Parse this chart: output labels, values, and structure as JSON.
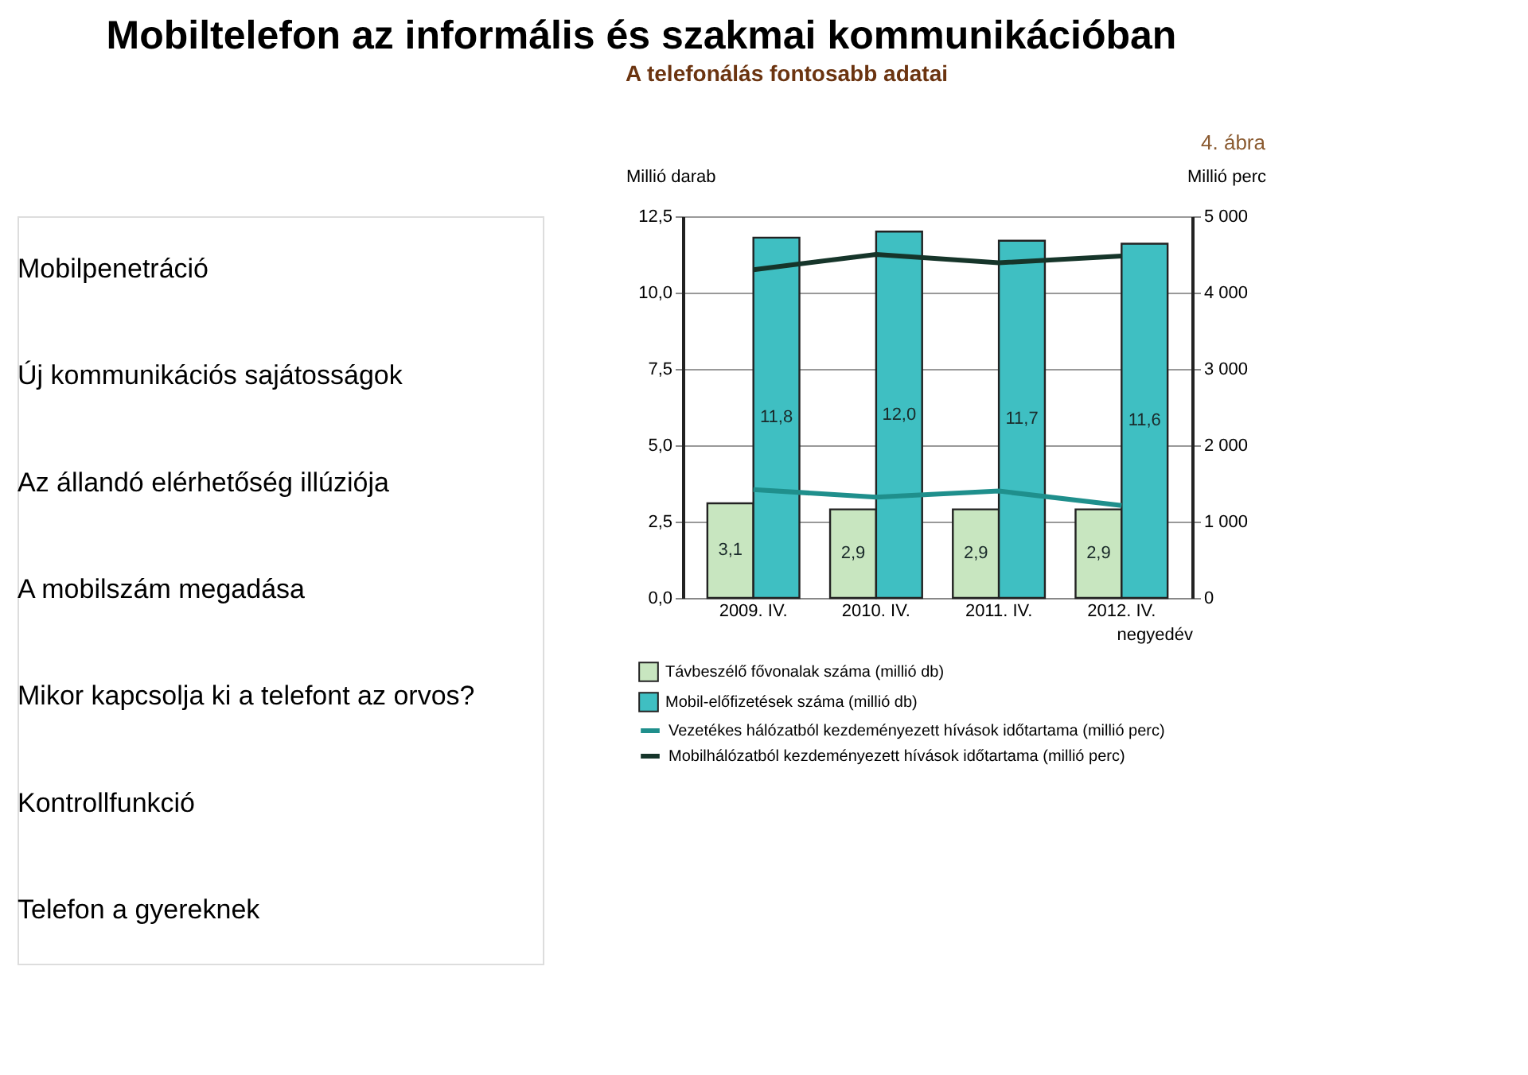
{
  "chart_data": {
    "type": "bar",
    "title": "Mobiltelefon az informális és szakmai kommunikációban",
    "subtitle": "A telefonálás fontosabb adatai",
    "annotations": [
      "4. ábra",
      "Mobilpenetráció",
      "Új kommunikációs sajátosságok",
      "Az állandó elérhetőség illúziója",
      "A mobilszám megadása",
      "Mikor kapcsolja ki a telefont az orvos?",
      "Kontrollfunkció",
      "Telefon a gyereknek"
    ],
    "categories": [
      "2009. IV.",
      "2010. IV.",
      "2011. IV.",
      "2012. IV."
    ],
    "xlabel": "negyedév",
    "ylabel": "Millió darab",
    "y2label": "Millió perc",
    "series": [
      {
        "name": "Távbeszélő fővonalak száma (millió db)",
        "color": "#c8e6c0",
        "values": [
          3.1,
          2.9,
          2.9,
          2.9
        ],
        "value_labels": [
          "3,1",
          "2,9",
          "2,9",
          "2,9"
        ]
      },
      {
        "name": "Mobil-előfizetések száma (millió db)",
        "color": "#3fbfc2",
        "values": [
          11.8,
          12.0,
          11.7,
          11.6
        ],
        "value_labels": [
          "11,8",
          "12,0",
          "11,7",
          "11,6"
        ]
      },
      {
        "name": "Vezetékes hálózatból kezdeményezett hívások időtartama (millió perc)",
        "type": "line",
        "axis": "y2",
        "color": "#1f8f8c",
        "values": [
          1420,
          1320,
          1400,
          1210
        ]
      },
      {
        "name": "Mobilhálózatból kezdeményezett hívások időtartama (millió perc)",
        "type": "line",
        "axis": "y2",
        "color": "#16352a",
        "values": [
          4300,
          4500,
          4390,
          4480
        ]
      }
    ],
    "ylim": [
      0,
      12.5
    ],
    "yticks": [
      {
        "value": 0,
        "label": "0,0"
      },
      {
        "value": 2.5,
        "label": "2,5"
      },
      {
        "value": 5,
        "label": "5,0"
      },
      {
        "value": 7.5,
        "label": "7,5"
      },
      {
        "value": 10,
        "label": "10,0"
      },
      {
        "value": 12.5,
        "label": "12,5"
      }
    ],
    "y2lim": [
      0,
      5000
    ],
    "y2ticks": [
      0,
      {
        "value": 1000,
        "label": "1 000"
      },
      {
        "value": 2000,
        "label": "2 000"
      },
      {
        "value": 3000,
        "label": "3 000"
      },
      {
        "value": 4000,
        "label": "4 000"
      },
      {
        "value": 5000,
        "label": "5 000"
      }
    ],
    "grid": "y",
    "legend": "bottom",
    "line_style": "solid",
    "marker": "none"
  }
}
